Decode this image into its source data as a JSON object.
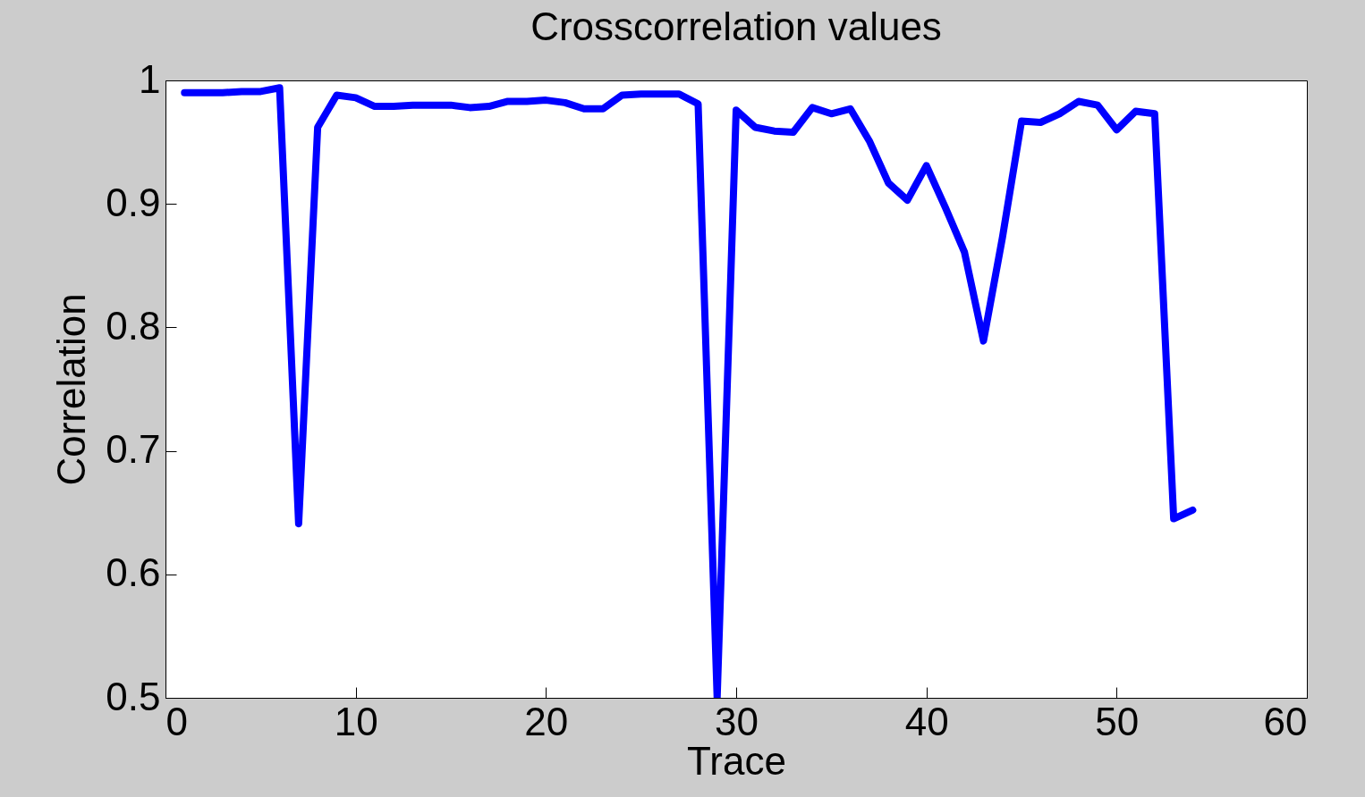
{
  "chart_data": {
    "type": "line",
    "title": "Crosscorrelation values",
    "xlabel": "Trace",
    "ylabel": "Correlation",
    "x": [
      1,
      2,
      3,
      4,
      5,
      6,
      7,
      8,
      9,
      10,
      11,
      12,
      13,
      14,
      15,
      16,
      17,
      18,
      19,
      20,
      21,
      22,
      23,
      24,
      25,
      26,
      27,
      28,
      29,
      30,
      31,
      32,
      33,
      34,
      35,
      36,
      37,
      38,
      39,
      40,
      41,
      42,
      43,
      44,
      45,
      46,
      47,
      48,
      49,
      50,
      51,
      52,
      53,
      54
    ],
    "series": [
      {
        "color": "#0000ff",
        "values": [
          0.99,
          0.99,
          0.99,
          0.991,
          0.991,
          0.994,
          0.641,
          0.962,
          0.988,
          0.986,
          0.979,
          0.979,
          0.98,
          0.98,
          0.98,
          0.978,
          0.979,
          0.983,
          0.983,
          0.984,
          0.982,
          0.977,
          0.977,
          0.988,
          0.989,
          0.989,
          0.989,
          0.981,
          0.5,
          0.976,
          0.962,
          0.959,
          0.958,
          0.978,
          0.973,
          0.977,
          0.951,
          0.917,
          0.903,
          0.931,
          0.897,
          0.861,
          0.789,
          0.873,
          0.967,
          0.966,
          0.973,
          0.983,
          0.98,
          0.96,
          0.975,
          0.973,
          0.645,
          0.652
        ]
      }
    ],
    "xlim": [
      0,
      60
    ],
    "xticks": [
      0,
      10,
      20,
      30,
      40,
      50,
      60
    ],
    "ylim": [
      0.5,
      1
    ],
    "yticks": [
      0.5,
      0.6,
      0.7,
      0.8,
      0.9,
      1
    ],
    "grid": false,
    "line_style": "solid"
  }
}
